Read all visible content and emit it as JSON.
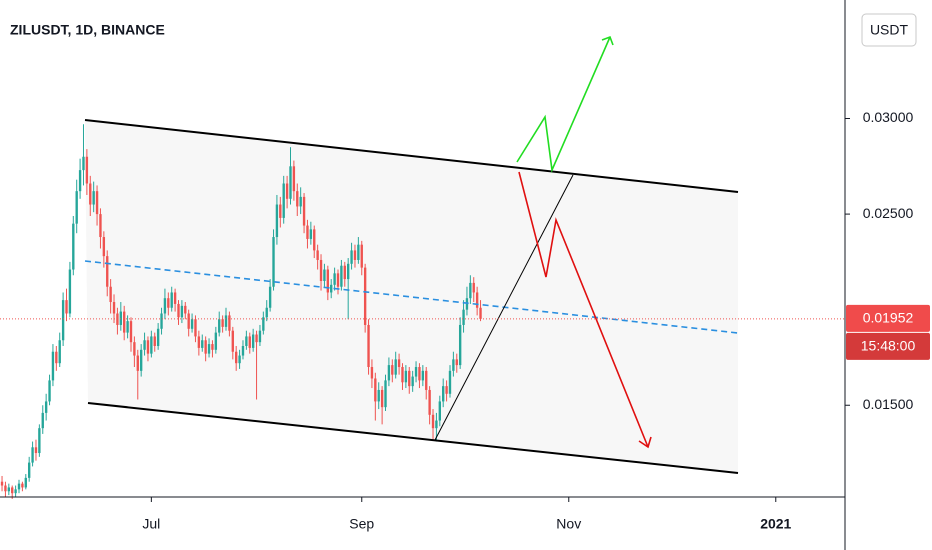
{
  "chart_data": {
    "type": "candlestick",
    "title": "ZILUSDT, 1D, BINANCE",
    "currency": "USDT",
    "last_price": 0.01952,
    "last_price_label": "0.01952",
    "countdown": "15:48:00",
    "up_color": "#26a69a",
    "down_color": "#ef5350",
    "xlim": [
      -0.6,
      248.4
    ],
    "xticks": [
      {
        "value": 44,
        "label": "Jul"
      },
      {
        "value": 106,
        "label": "Sep"
      },
      {
        "value": 167,
        "label": "Nov"
      },
      {
        "value": 228,
        "label": "2021"
      }
    ],
    "ylim": [
      0.0102,
      0.0362
    ],
    "yticks": [
      {
        "value": 0.015,
        "label": "0.01500"
      },
      {
        "value": 0.025,
        "label": "0.02500"
      },
      {
        "value": 0.03,
        "label": "0.03000"
      }
    ],
    "ohlc": [
      [
        0.011,
        0.0113,
        0.0105,
        0.0108
      ],
      [
        0.0108,
        0.011,
        0.0102,
        0.0105
      ],
      [
        0.0105,
        0.0109,
        0.0103,
        0.0107
      ],
      [
        0.0107,
        0.0108,
        0.0101,
        0.0104
      ],
      [
        0.0104,
        0.0108,
        0.0102,
        0.0106
      ],
      [
        0.0106,
        0.0111,
        0.0104,
        0.0109
      ],
      [
        0.0109,
        0.011,
        0.0105,
        0.0107
      ],
      [
        0.0107,
        0.0114,
        0.0106,
        0.0112
      ],
      [
        0.0112,
        0.0123,
        0.011,
        0.012
      ],
      [
        0.012,
        0.0131,
        0.0118,
        0.0128
      ],
      [
        0.0128,
        0.0132,
        0.0121,
        0.0125
      ],
      [
        0.0125,
        0.014,
        0.0123,
        0.0138
      ],
      [
        0.0138,
        0.015,
        0.0135,
        0.0146
      ],
      [
        0.0146,
        0.0156,
        0.0142,
        0.0152
      ],
      [
        0.0152,
        0.0166,
        0.015,
        0.0163
      ],
      [
        0.0163,
        0.0182,
        0.016,
        0.0178
      ],
      [
        0.0178,
        0.0181,
        0.0168,
        0.0172
      ],
      [
        0.0172,
        0.0188,
        0.017,
        0.0184
      ],
      [
        0.0184,
        0.0209,
        0.0181,
        0.0205
      ],
      [
        0.0205,
        0.0211,
        0.0194,
        0.0198
      ],
      [
        0.0198,
        0.0225,
        0.0196,
        0.0221
      ],
      [
        0.0221,
        0.0249,
        0.0218,
        0.0245
      ],
      [
        0.0245,
        0.0268,
        0.024,
        0.0262
      ],
      [
        0.0262,
        0.0279,
        0.0258,
        0.0273
      ],
      [
        0.0273,
        0.0297,
        0.0265,
        0.028
      ],
      [
        0.028,
        0.0284,
        0.026,
        0.0266
      ],
      [
        0.0266,
        0.027,
        0.0249,
        0.0255
      ],
      [
        0.0255,
        0.0267,
        0.0251,
        0.0262
      ],
      [
        0.0262,
        0.0265,
        0.0244,
        0.025
      ],
      [
        0.025,
        0.0253,
        0.0232,
        0.0238
      ],
      [
        0.0238,
        0.0241,
        0.0222,
        0.0228
      ],
      [
        0.0228,
        0.0231,
        0.0207,
        0.0212
      ],
      [
        0.0212,
        0.0216,
        0.0198,
        0.0204
      ],
      [
        0.0204,
        0.0208,
        0.0193,
        0.0198
      ],
      [
        0.0198,
        0.0201,
        0.0187,
        0.0192
      ],
      [
        0.0192,
        0.0204,
        0.0189,
        0.0199
      ],
      [
        0.0199,
        0.0202,
        0.0184,
        0.0188
      ],
      [
        0.0188,
        0.0197,
        0.0185,
        0.0194
      ],
      [
        0.0194,
        0.0196,
        0.0178,
        0.0183
      ],
      [
        0.0183,
        0.0186,
        0.017,
        0.0176
      ],
      [
        0.0176,
        0.0179,
        0.0153,
        0.0168
      ],
      [
        0.0168,
        0.0182,
        0.0165,
        0.0179
      ],
      [
        0.0179,
        0.0188,
        0.0176,
        0.0184
      ],
      [
        0.0184,
        0.0186,
        0.0173,
        0.0177
      ],
      [
        0.0177,
        0.0189,
        0.0175,
        0.0186
      ],
      [
        0.0186,
        0.0188,
        0.0178,
        0.0181
      ],
      [
        0.0181,
        0.0193,
        0.0179,
        0.019
      ],
      [
        0.019,
        0.0201,
        0.0187,
        0.0198
      ],
      [
        0.0198,
        0.0211,
        0.0195,
        0.0206
      ],
      [
        0.0206,
        0.0209,
        0.0197,
        0.0201
      ],
      [
        0.0201,
        0.0212,
        0.0199,
        0.0209
      ],
      [
        0.0209,
        0.0211,
        0.0199,
        0.0203
      ],
      [
        0.0203,
        0.0205,
        0.0192,
        0.0196
      ],
      [
        0.0196,
        0.0205,
        0.0193,
        0.0202
      ],
      [
        0.0202,
        0.0204,
        0.0195,
        0.0198
      ],
      [
        0.0198,
        0.02,
        0.0186,
        0.019
      ],
      [
        0.019,
        0.0198,
        0.0188,
        0.0195
      ],
      [
        0.0195,
        0.0197,
        0.0183,
        0.0186
      ],
      [
        0.0186,
        0.0189,
        0.0176,
        0.018
      ],
      [
        0.018,
        0.0187,
        0.0178,
        0.0184
      ],
      [
        0.0184,
        0.0186,
        0.0173,
        0.0177
      ],
      [
        0.0177,
        0.0185,
        0.0175,
        0.0182
      ],
      [
        0.0182,
        0.0184,
        0.0175,
        0.0179
      ],
      [
        0.0179,
        0.0191,
        0.0177,
        0.0188
      ],
      [
        0.0188,
        0.0199,
        0.0186,
        0.0195
      ],
      [
        0.0195,
        0.0197,
        0.0188,
        0.0191
      ],
      [
        0.0191,
        0.0201,
        0.0189,
        0.0197
      ],
      [
        0.0197,
        0.0199,
        0.0186,
        0.0189
      ],
      [
        0.0189,
        0.0191,
        0.0174,
        0.0178
      ],
      [
        0.0178,
        0.0181,
        0.0168,
        0.0172
      ],
      [
        0.0172,
        0.0179,
        0.0169,
        0.0176
      ],
      [
        0.0176,
        0.0184,
        0.0174,
        0.0181
      ],
      [
        0.0181,
        0.0189,
        0.0179,
        0.0186
      ],
      [
        0.0186,
        0.0188,
        0.0177,
        0.018
      ],
      [
        0.018,
        0.019,
        0.0178,
        0.0187
      ],
      [
        0.0187,
        0.0189,
        0.0153,
        0.0183
      ],
      [
        0.0183,
        0.0192,
        0.0181,
        0.0189
      ],
      [
        0.0189,
        0.0199,
        0.0187,
        0.0196
      ],
      [
        0.0196,
        0.0205,
        0.0194,
        0.0201
      ],
      [
        0.0201,
        0.0216,
        0.0199,
        0.0212
      ],
      [
        0.0212,
        0.0242,
        0.021,
        0.0238
      ],
      [
        0.0238,
        0.026,
        0.0234,
        0.0255
      ],
      [
        0.0255,
        0.0259,
        0.0243,
        0.0248
      ],
      [
        0.0248,
        0.027,
        0.0245,
        0.0266
      ],
      [
        0.0266,
        0.027,
        0.0253,
        0.0258
      ],
      [
        0.0258,
        0.0285,
        0.0255,
        0.0275
      ],
      [
        0.0275,
        0.0278,
        0.0257,
        0.0262
      ],
      [
        0.0262,
        0.0266,
        0.0249,
        0.0254
      ],
      [
        0.0254,
        0.0264,
        0.025,
        0.0259
      ],
      [
        0.0259,
        0.0261,
        0.024,
        0.0244
      ],
      [
        0.0244,
        0.0247,
        0.0232,
        0.0237
      ],
      [
        0.0237,
        0.0246,
        0.0234,
        0.0242
      ],
      [
        0.0242,
        0.0244,
        0.0227,
        0.0231
      ],
      [
        0.0231,
        0.0234,
        0.0221,
        0.0226
      ],
      [
        0.0226,
        0.0229,
        0.021,
        0.0215
      ],
      [
        0.0215,
        0.0224,
        0.0212,
        0.0221
      ],
      [
        0.0221,
        0.0223,
        0.0205,
        0.0209
      ],
      [
        0.0209,
        0.0216,
        0.0206,
        0.0213
      ],
      [
        0.0213,
        0.0222,
        0.021,
        0.0219
      ],
      [
        0.0219,
        0.0221,
        0.0208,
        0.0212
      ],
      [
        0.0212,
        0.0226,
        0.021,
        0.0223
      ],
      [
        0.0223,
        0.0225,
        0.0212,
        0.0216
      ],
      [
        0.0216,
        0.0227,
        0.0195,
        0.0224
      ],
      [
        0.0224,
        0.0235,
        0.0221,
        0.0231
      ],
      [
        0.0231,
        0.0234,
        0.0222,
        0.0226
      ],
      [
        0.0226,
        0.0238,
        0.0224,
        0.0234
      ],
      [
        0.0234,
        0.0236,
        0.0218,
        0.0222
      ],
      [
        0.0222,
        0.0224,
        0.0188,
        0.0192
      ],
      [
        0.0192,
        0.0195,
        0.0166,
        0.017
      ],
      [
        0.017,
        0.0174,
        0.0159,
        0.0164
      ],
      [
        0.0164,
        0.0167,
        0.0142,
        0.0152
      ],
      [
        0.0152,
        0.0162,
        0.0148,
        0.0158
      ],
      [
        0.0158,
        0.016,
        0.014,
        0.0149
      ],
      [
        0.0149,
        0.0166,
        0.0147,
        0.0163
      ],
      [
        0.0163,
        0.0175,
        0.016,
        0.0171
      ],
      [
        0.0171,
        0.0174,
        0.0162,
        0.0166
      ],
      [
        0.0166,
        0.0178,
        0.0164,
        0.0174
      ],
      [
        0.0174,
        0.0177,
        0.0166,
        0.017
      ],
      [
        0.017,
        0.0172,
        0.0158,
        0.0162
      ],
      [
        0.0162,
        0.0171,
        0.0159,
        0.0168
      ],
      [
        0.0168,
        0.017,
        0.0156,
        0.016
      ],
      [
        0.016,
        0.0168,
        0.0157,
        0.0165
      ],
      [
        0.0165,
        0.0173,
        0.0162,
        0.017
      ],
      [
        0.017,
        0.0172,
        0.0159,
        0.0163
      ],
      [
        0.0163,
        0.0171,
        0.016,
        0.0168
      ],
      [
        0.0168,
        0.017,
        0.0153,
        0.0158
      ],
      [
        0.0158,
        0.016,
        0.014,
        0.0145
      ],
      [
        0.0145,
        0.0148,
        0.0132,
        0.0138
      ],
      [
        0.0138,
        0.0146,
        0.0131,
        0.0142
      ],
      [
        0.0142,
        0.0155,
        0.0139,
        0.0152
      ],
      [
        0.0152,
        0.0164,
        0.0149,
        0.016
      ],
      [
        0.016,
        0.0163,
        0.0152,
        0.0156
      ],
      [
        0.0156,
        0.0171,
        0.0154,
        0.0168
      ],
      [
        0.0168,
        0.0178,
        0.0165,
        0.0174
      ],
      [
        0.0174,
        0.0177,
        0.0167,
        0.0171
      ],
      [
        0.0171,
        0.0196,
        0.0169,
        0.0192
      ],
      [
        0.0192,
        0.0205,
        0.0188,
        0.02
      ],
      [
        0.02,
        0.0212,
        0.0197,
        0.0206
      ],
      [
        0.0206,
        0.0218,
        0.0203,
        0.0214
      ],
      [
        0.0214,
        0.0217,
        0.0204,
        0.0209
      ],
      [
        0.0209,
        0.0212,
        0.0197,
        0.0201
      ],
      [
        0.0201,
        0.0205,
        0.0194,
        0.01952
      ]
    ]
  }
}
